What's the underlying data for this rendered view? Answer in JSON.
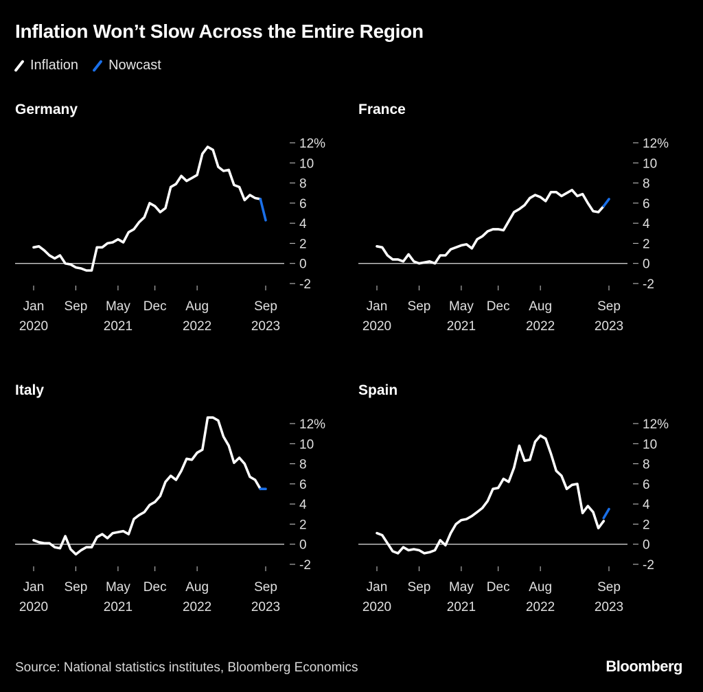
{
  "title": "Inflation Won’t Slow Across the Entire Region",
  "legend": [
    {
      "label": "Inflation",
      "color": "#ffffff"
    },
    {
      "label": "Nowcast",
      "color": "#1a6fe8"
    }
  ],
  "source": "Source: National statistics institutes, Bloomberg Economics",
  "brand": "Bloomberg",
  "chart_data": [
    {
      "type": "line",
      "title": "Germany",
      "ylim": [
        -2,
        12
      ],
      "yticks": [
        12,
        10,
        8,
        6,
        4,
        2,
        0,
        -2
      ],
      "ytick_labels": [
        "12%",
        "10",
        "8",
        "6",
        "4",
        "2",
        "0",
        "-2"
      ],
      "xticks": [
        {
          "i": 0,
          "l1": "Jan",
          "l2": "2020"
        },
        {
          "i": 8,
          "l1": "Sep",
          "l2": ""
        },
        {
          "i": 16,
          "l1": "May",
          "l2": "2021"
        },
        {
          "i": 23,
          "l1": "Dec",
          "l2": ""
        },
        {
          "i": 31,
          "l1": "Aug",
          "l2": "2022"
        },
        {
          "i": 44,
          "l1": "Sep",
          "l2": "2023"
        }
      ],
      "series": [
        {
          "name": "Inflation",
          "color": "#ffffff",
          "x_start": 0,
          "values": [
            1.6,
            1.7,
            1.3,
            0.8,
            0.5,
            0.8,
            0.0,
            -0.1,
            -0.4,
            -0.5,
            -0.7,
            -0.7,
            1.6,
            1.6,
            2.0,
            2.1,
            2.4,
            2.1,
            3.1,
            3.4,
            4.1,
            4.6,
            6.0,
            5.7,
            5.1,
            5.5,
            7.6,
            7.9,
            8.7,
            8.2,
            8.5,
            8.8,
            10.9,
            11.6,
            11.3,
            9.6,
            9.2,
            9.3,
            7.8,
            7.6,
            6.3,
            6.8,
            6.5,
            6.4
          ]
        },
        {
          "name": "Nowcast",
          "color": "#1a6fe8",
          "x_start": 43,
          "values": [
            6.4,
            4.3
          ]
        }
      ]
    },
    {
      "type": "line",
      "title": "France",
      "ylim": [
        -2,
        12
      ],
      "yticks": [
        12,
        10,
        8,
        6,
        4,
        2,
        0,
        -2
      ],
      "ytick_labels": [
        "12%",
        "10",
        "8",
        "6",
        "4",
        "2",
        "0",
        "-2"
      ],
      "xticks": [
        {
          "i": 0,
          "l1": "Jan",
          "l2": "2020"
        },
        {
          "i": 8,
          "l1": "Sep",
          "l2": ""
        },
        {
          "i": 16,
          "l1": "May",
          "l2": "2021"
        },
        {
          "i": 23,
          "l1": "Dec",
          "l2": ""
        },
        {
          "i": 31,
          "l1": "Aug",
          "l2": "2022"
        },
        {
          "i": 44,
          "l1": "Sep",
          "l2": "2023"
        }
      ],
      "series": [
        {
          "name": "Inflation",
          "color": "#ffffff",
          "x_start": 0,
          "values": [
            1.7,
            1.6,
            0.8,
            0.4,
            0.4,
            0.2,
            0.9,
            0.2,
            0.0,
            0.1,
            0.2,
            0.0,
            0.8,
            0.8,
            1.4,
            1.6,
            1.8,
            1.9,
            1.5,
            2.4,
            2.7,
            3.2,
            3.4,
            3.4,
            3.3,
            4.2,
            5.1,
            5.4,
            5.8,
            6.5,
            6.8,
            6.6,
            6.2,
            7.1,
            7.1,
            6.7,
            7.0,
            7.3,
            6.7,
            6.9,
            6.0,
            5.2,
            5.1,
            5.7
          ]
        },
        {
          "name": "Nowcast",
          "color": "#1a6fe8",
          "x_start": 43,
          "values": [
            5.7,
            6.4
          ]
        }
      ]
    },
    {
      "type": "line",
      "title": "Italy",
      "ylim": [
        -2,
        12
      ],
      "yticks": [
        12,
        10,
        8,
        6,
        4,
        2,
        0,
        -2
      ],
      "ytick_labels": [
        "12%",
        "10",
        "8",
        "6",
        "4",
        "2",
        "0",
        "-2"
      ],
      "xticks": [
        {
          "i": 0,
          "l1": "Jan",
          "l2": "2020"
        },
        {
          "i": 8,
          "l1": "Sep",
          "l2": ""
        },
        {
          "i": 16,
          "l1": "May",
          "l2": "2021"
        },
        {
          "i": 23,
          "l1": "Dec",
          "l2": ""
        },
        {
          "i": 31,
          "l1": "Aug",
          "l2": "2022"
        },
        {
          "i": 44,
          "l1": "Sep",
          "l2": "2023"
        }
      ],
      "series": [
        {
          "name": "Inflation",
          "color": "#ffffff",
          "x_start": 0,
          "values": [
            0.4,
            0.2,
            0.1,
            0.1,
            -0.3,
            -0.4,
            0.8,
            -0.5,
            -1.0,
            -0.6,
            -0.3,
            -0.3,
            0.7,
            1.0,
            0.6,
            1.1,
            1.2,
            1.3,
            1.0,
            2.5,
            2.9,
            3.2,
            3.9,
            4.2,
            4.8,
            6.2,
            6.8,
            6.4,
            7.3,
            8.5,
            8.4,
            9.1,
            9.4,
            12.6,
            12.6,
            12.3,
            10.7,
            9.8,
            8.1,
            8.6,
            8.0,
            6.7,
            6.4,
            5.5
          ]
        },
        {
          "name": "Nowcast",
          "color": "#1a6fe8",
          "x_start": 43,
          "values": [
            5.5,
            5.5
          ]
        }
      ]
    },
    {
      "type": "line",
      "title": "Spain",
      "ylim": [
        -2,
        12
      ],
      "yticks": [
        12,
        10,
        8,
        6,
        4,
        2,
        0,
        -2
      ],
      "ytick_labels": [
        "12%",
        "10",
        "8",
        "6",
        "4",
        "2",
        "0",
        "-2"
      ],
      "xticks": [
        {
          "i": 0,
          "l1": "Jan",
          "l2": "2020"
        },
        {
          "i": 8,
          "l1": "Sep",
          "l2": ""
        },
        {
          "i": 16,
          "l1": "May",
          "l2": "2021"
        },
        {
          "i": 23,
          "l1": "Dec",
          "l2": ""
        },
        {
          "i": 31,
          "l1": "Aug",
          "l2": "2022"
        },
        {
          "i": 44,
          "l1": "Sep",
          "l2": "2023"
        }
      ],
      "series": [
        {
          "name": "Inflation",
          "color": "#ffffff",
          "x_start": 0,
          "values": [
            1.1,
            0.9,
            0.1,
            -0.7,
            -0.9,
            -0.3,
            -0.6,
            -0.5,
            -0.6,
            -0.9,
            -0.8,
            -0.6,
            0.4,
            -0.1,
            1.1,
            2.0,
            2.4,
            2.5,
            2.8,
            3.2,
            3.6,
            4.3,
            5.5,
            5.6,
            6.5,
            6.2,
            7.6,
            9.8,
            8.3,
            8.4,
            10.2,
            10.8,
            10.5,
            9.0,
            7.3,
            6.8,
            5.5,
            5.9,
            6.0,
            3.1,
            3.8,
            3.2,
            1.6,
            2.3
          ]
        },
        {
          "name": "Nowcast",
          "color": "#1a6fe8",
          "x_start": 43,
          "values": [
            2.6,
            3.5
          ]
        }
      ]
    }
  ]
}
